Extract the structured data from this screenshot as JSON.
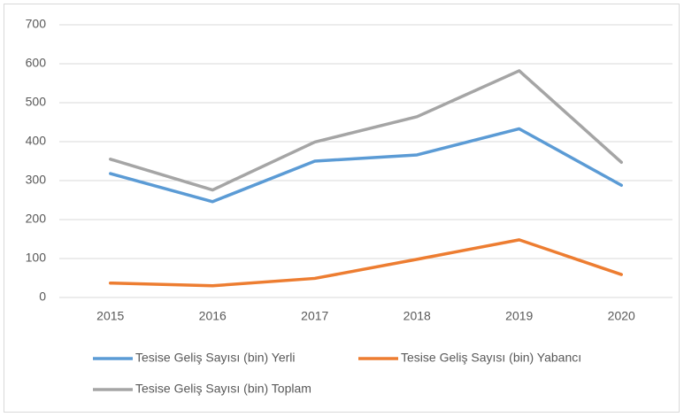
{
  "chart_data": {
    "type": "line",
    "categories": [
      "2015",
      "2016",
      "2017",
      "2018",
      "2019",
      "2020"
    ],
    "series": [
      {
        "name": "Tesise Geliş Sayısı (bin) Yerli",
        "color": "#5b9bd5",
        "values": [
          318,
          246,
          350,
          366,
          433,
          288
        ]
      },
      {
        "name": "Tesise Geliş Sayısı (bin) Yabancı",
        "color": "#ed7d31",
        "values": [
          37,
          30,
          49,
          98,
          148,
          59
        ]
      },
      {
        "name": "Tesise Geliş Sayısı (bin) Toplam",
        "color": "#a5a5a5",
        "values": [
          355,
          276,
          399,
          464,
          582,
          347
        ]
      }
    ],
    "ylim": [
      0,
      700
    ],
    "yticks": [
      0,
      100,
      200,
      300,
      400,
      500,
      600,
      700
    ],
    "grid": true
  }
}
